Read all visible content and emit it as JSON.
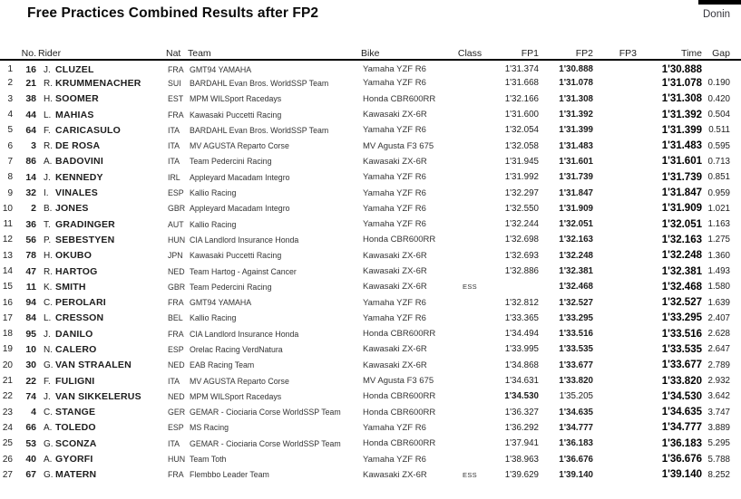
{
  "page": {
    "title": "Free Practices Combined Results after FP2",
    "event_label": "Donin",
    "bar_color": "#000000"
  },
  "table": {
    "headers": {
      "no": "No.",
      "rider": "Rider",
      "nat": "Nat",
      "team": "Team",
      "bike": "Bike",
      "cls": "Class",
      "fp1": "FP1",
      "fp2": "FP2",
      "fp3": "FP3",
      "time": "Time",
      "gap": "Gap"
    },
    "rows": [
      {
        "pos": "1",
        "no": "16",
        "init": "J.",
        "name": "CLUZEL",
        "nat": "FRA",
        "team": "GMT94 YAMAHA",
        "bike": "Yamaha YZF R6",
        "cls": "",
        "fp1": "1'31.374",
        "fp2": "1'30.888",
        "fp3": "",
        "time": "1'30.888",
        "gap": "",
        "best": "fp2"
      },
      {
        "pos": "2",
        "no": "21",
        "init": "R.",
        "name": "KRUMMENACHER",
        "nat": "SUI",
        "team": "BARDAHL Evan Bros. WorldSSP Team",
        "bike": "Yamaha YZF R6",
        "cls": "",
        "fp1": "1'31.668",
        "fp2": "1'31.078",
        "fp3": "",
        "time": "1'31.078",
        "gap": "0.190",
        "best": "fp2"
      },
      {
        "pos": "3",
        "no": "38",
        "init": "H.",
        "name": "SOOMER",
        "nat": "EST",
        "team": "MPM WILSport Racedays",
        "bike": "Honda CBR600RR",
        "cls": "",
        "fp1": "1'32.166",
        "fp2": "1'31.308",
        "fp3": "",
        "time": "1'31.308",
        "gap": "0.420",
        "best": "fp2"
      },
      {
        "pos": "4",
        "no": "44",
        "init": "L.",
        "name": "MAHIAS",
        "nat": "FRA",
        "team": "Kawasaki Puccetti Racing",
        "bike": "Kawasaki ZX-6R",
        "cls": "",
        "fp1": "1'31.600",
        "fp2": "1'31.392",
        "fp3": "",
        "time": "1'31.392",
        "gap": "0.504",
        "best": "fp2"
      },
      {
        "pos": "5",
        "no": "64",
        "init": "F.",
        "name": "CARICASULO",
        "nat": "ITA",
        "team": "BARDAHL Evan Bros. WorldSSP Team",
        "bike": "Yamaha YZF R6",
        "cls": "",
        "fp1": "1'32.054",
        "fp2": "1'31.399",
        "fp3": "",
        "time": "1'31.399",
        "gap": "0.511",
        "best": "fp2"
      },
      {
        "pos": "6",
        "no": "3",
        "init": "R.",
        "name": "DE ROSA",
        "nat": "ITA",
        "team": "MV AGUSTA Reparto Corse",
        "bike": "MV Agusta F3 675",
        "cls": "",
        "fp1": "1'32.058",
        "fp2": "1'31.483",
        "fp3": "",
        "time": "1'31.483",
        "gap": "0.595",
        "best": "fp2"
      },
      {
        "pos": "7",
        "no": "86",
        "init": "A.",
        "name": "BADOVINI",
        "nat": "ITA",
        "team": "Team Pedercini Racing",
        "bike": "Kawasaki ZX-6R",
        "cls": "",
        "fp1": "1'31.945",
        "fp2": "1'31.601",
        "fp3": "",
        "time": "1'31.601",
        "gap": "0.713",
        "best": "fp2"
      },
      {
        "pos": "8",
        "no": "14",
        "init": "J.",
        "name": "KENNEDY",
        "nat": "IRL",
        "team": "Appleyard Macadam Integro",
        "bike": "Yamaha YZF R6",
        "cls": "",
        "fp1": "1'31.992",
        "fp2": "1'31.739",
        "fp3": "",
        "time": "1'31.739",
        "gap": "0.851",
        "best": "fp2"
      },
      {
        "pos": "9",
        "no": "32",
        "init": "I.",
        "name": "VINALES",
        "nat": "ESP",
        "team": "Kallio Racing",
        "bike": "Yamaha YZF R6",
        "cls": "",
        "fp1": "1'32.297",
        "fp2": "1'31.847",
        "fp3": "",
        "time": "1'31.847",
        "gap": "0.959",
        "best": "fp2"
      },
      {
        "pos": "10",
        "no": "2",
        "init": "B.",
        "name": "JONES",
        "nat": "GBR",
        "team": "Appleyard Macadam Integro",
        "bike": "Yamaha YZF R6",
        "cls": "",
        "fp1": "1'32.550",
        "fp2": "1'31.909",
        "fp3": "",
        "time": "1'31.909",
        "gap": "1.021",
        "best": "fp2"
      },
      {
        "pos": "11",
        "no": "36",
        "init": "T.",
        "name": "GRADINGER",
        "nat": "AUT",
        "team": "Kallio Racing",
        "bike": "Yamaha YZF R6",
        "cls": "",
        "fp1": "1'32.244",
        "fp2": "1'32.051",
        "fp3": "",
        "time": "1'32.051",
        "gap": "1.163",
        "best": "fp2"
      },
      {
        "pos": "12",
        "no": "56",
        "init": "P.",
        "name": "SEBESTYEN",
        "nat": "HUN",
        "team": "CIA Landlord Insurance Honda",
        "bike": "Honda CBR600RR",
        "cls": "",
        "fp1": "1'32.698",
        "fp2": "1'32.163",
        "fp3": "",
        "time": "1'32.163",
        "gap": "1.275",
        "best": "fp2"
      },
      {
        "pos": "13",
        "no": "78",
        "init": "H.",
        "name": "OKUBO",
        "nat": "JPN",
        "team": "Kawasaki Puccetti Racing",
        "bike": "Kawasaki ZX-6R",
        "cls": "",
        "fp1": "1'32.693",
        "fp2": "1'32.248",
        "fp3": "",
        "time": "1'32.248",
        "gap": "1.360",
        "best": "fp2"
      },
      {
        "pos": "14",
        "no": "47",
        "init": "R.",
        "name": "HARTOG",
        "nat": "NED",
        "team": "Team Hartog - Against Cancer",
        "bike": "Kawasaki ZX-6R",
        "cls": "",
        "fp1": "1'32.886",
        "fp2": "1'32.381",
        "fp3": "",
        "time": "1'32.381",
        "gap": "1.493",
        "best": "fp2"
      },
      {
        "pos": "15",
        "no": "11",
        "init": "K.",
        "name": "SMITH",
        "nat": "GBR",
        "team": "Team Pedercini Racing",
        "bike": "Kawasaki ZX-6R",
        "cls": "ESS",
        "fp1": "",
        "fp2": "1'32.468",
        "fp3": "",
        "time": "1'32.468",
        "gap": "1.580",
        "best": "fp2"
      },
      {
        "pos": "16",
        "no": "94",
        "init": "C.",
        "name": "PEROLARI",
        "nat": "FRA",
        "team": "GMT94 YAMAHA",
        "bike": "Yamaha YZF R6",
        "cls": "",
        "fp1": "1'32.812",
        "fp2": "1'32.527",
        "fp3": "",
        "time": "1'32.527",
        "gap": "1.639",
        "best": "fp2"
      },
      {
        "pos": "17",
        "no": "84",
        "init": "L.",
        "name": "CRESSON",
        "nat": "BEL",
        "team": "Kallio Racing",
        "bike": "Yamaha YZF R6",
        "cls": "",
        "fp1": "1'33.365",
        "fp2": "1'33.295",
        "fp3": "",
        "time": "1'33.295",
        "gap": "2.407",
        "best": "fp2"
      },
      {
        "pos": "18",
        "no": "95",
        "init": "J.",
        "name": "DANILO",
        "nat": "FRA",
        "team": "CIA Landlord Insurance Honda",
        "bike": "Honda CBR600RR",
        "cls": "",
        "fp1": "1'34.494",
        "fp2": "1'33.516",
        "fp3": "",
        "time": "1'33.516",
        "gap": "2.628",
        "best": "fp2"
      },
      {
        "pos": "19",
        "no": "10",
        "init": "N.",
        "name": "CALERO",
        "nat": "ESP",
        "team": "Orelac Racing VerdNatura",
        "bike": "Kawasaki ZX-6R",
        "cls": "",
        "fp1": "1'33.995",
        "fp2": "1'33.535",
        "fp3": "",
        "time": "1'33.535",
        "gap": "2.647",
        "best": "fp2"
      },
      {
        "pos": "20",
        "no": "30",
        "init": "G.",
        "name": "VAN STRAALEN",
        "nat": "NED",
        "team": "EAB Racing Team",
        "bike": "Kawasaki ZX-6R",
        "cls": "",
        "fp1": "1'34.868",
        "fp2": "1'33.677",
        "fp3": "",
        "time": "1'33.677",
        "gap": "2.789",
        "best": "fp2"
      },
      {
        "pos": "21",
        "no": "22",
        "init": "F.",
        "name": "FULIGNI",
        "nat": "ITA",
        "team": "MV AGUSTA Reparto Corse",
        "bike": "MV Agusta F3 675",
        "cls": "",
        "fp1": "1'34.631",
        "fp2": "1'33.820",
        "fp3": "",
        "time": "1'33.820",
        "gap": "2.932",
        "best": "fp2"
      },
      {
        "pos": "22",
        "no": "74",
        "init": "J.",
        "name": "VAN SIKKELERUS",
        "nat": "NED",
        "team": "MPM WILSport Racedays",
        "bike": "Honda CBR600RR",
        "cls": "",
        "fp1": "1'34.530",
        "fp2": "1'35.205",
        "fp3": "",
        "time": "1'34.530",
        "gap": "3.642",
        "best": "fp1"
      },
      {
        "pos": "23",
        "no": "4",
        "init": "C.",
        "name": "STANGE",
        "nat": "GER",
        "team": "GEMAR - Ciociaria Corse WorldSSP Team",
        "bike": "Honda CBR600RR",
        "cls": "",
        "fp1": "1'36.327",
        "fp2": "1'34.635",
        "fp3": "",
        "time": "1'34.635",
        "gap": "3.747",
        "best": "fp2"
      },
      {
        "pos": "24",
        "no": "66",
        "init": "A.",
        "name": "TOLEDO",
        "nat": "ESP",
        "team": "MS Racing",
        "bike": "Yamaha YZF R6",
        "cls": "",
        "fp1": "1'36.292",
        "fp2": "1'34.777",
        "fp3": "",
        "time": "1'34.777",
        "gap": "3.889",
        "best": "fp2"
      },
      {
        "pos": "25",
        "no": "53",
        "init": "G.",
        "name": "SCONZA",
        "nat": "ITA",
        "team": "GEMAR - Ciociaria Corse WorldSSP Team",
        "bike": "Honda CBR600RR",
        "cls": "",
        "fp1": "1'37.941",
        "fp2": "1'36.183",
        "fp3": "",
        "time": "1'36.183",
        "gap": "5.295",
        "best": "fp2"
      },
      {
        "pos": "26",
        "no": "40",
        "init": "A.",
        "name": "GYORFI",
        "nat": "HUN",
        "team": "Team Toth",
        "bike": "Yamaha YZF R6",
        "cls": "",
        "fp1": "1'38.963",
        "fp2": "1'36.676",
        "fp3": "",
        "time": "1'36.676",
        "gap": "5.788",
        "best": "fp2"
      },
      {
        "pos": "27",
        "no": "67",
        "init": "G.",
        "name": "MATERN",
        "nat": "FRA",
        "team": "Flembbo Leader Team",
        "bike": "Kawasaki ZX-6R",
        "cls": "ESS",
        "fp1": "1'39.629",
        "fp2": "1'39.140",
        "fp3": "",
        "time": "1'39.140",
        "gap": "8.252",
        "best": "fp2"
      }
    ]
  }
}
